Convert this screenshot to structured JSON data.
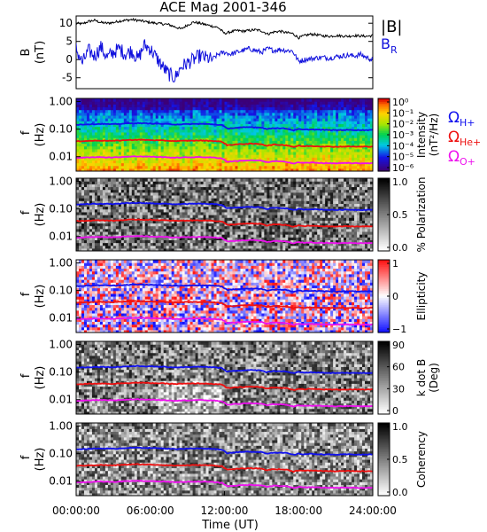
{
  "chart_data": [
    {
      "type": "line",
      "title": "ACE Mag 2001-346",
      "ylabel": "B",
      "yunit": "(nT)",
      "ylim": [
        -8,
        12
      ],
      "yticks": [
        "10",
        "5",
        "0",
        "-5"
      ],
      "series": [
        {
          "name": "|B|",
          "color": "#000000",
          "x": [
            0,
            0.5,
            1,
            1.5,
            2,
            2.5,
            3,
            3.5,
            4,
            4.5,
            5,
            5.5,
            6,
            6.5,
            7,
            7.5,
            8,
            8.5,
            9,
            9.5,
            10,
            10.5,
            11,
            11.5,
            12,
            12.5,
            13,
            13.5,
            14,
            14.5,
            15,
            15.5,
            16,
            16.5,
            17,
            17.5,
            18,
            18.5,
            19,
            19.5,
            20,
            20.5,
            21,
            21.5,
            22,
            22.5,
            23,
            23.5,
            24
          ],
          "values": [
            10.0,
            9.8,
            10.5,
            10.8,
            10.2,
            10.0,
            10.2,
            10.6,
            10.8,
            11.0,
            10.8,
            10.5,
            10.2,
            10.0,
            9.8,
            9.6,
            9.0,
            8.4,
            9.5,
            10.3,
            10.0,
            9.6,
            9.2,
            8.8,
            7.2,
            7.6,
            8.0,
            7.8,
            8.0,
            8.2,
            7.9,
            7.0,
            7.6,
            7.8,
            7.4,
            7.2,
            6.0,
            6.6,
            7.0,
            6.8,
            6.5,
            6.4,
            6.6,
            6.5,
            6.4,
            6.6,
            6.5,
            6.4,
            6.6
          ]
        },
        {
          "name": "B_R",
          "color": "#1010dd",
          "x": [
            0,
            0.5,
            1,
            1.5,
            2,
            2.5,
            3,
            3.5,
            4,
            4.5,
            5,
            5.5,
            6,
            6.5,
            7,
            7.5,
            8,
            8.5,
            9,
            9.5,
            10,
            10.5,
            11,
            11.5,
            12,
            12.5,
            13,
            13.5,
            14,
            14.5,
            15,
            15.5,
            16,
            16.5,
            17,
            17.5,
            18,
            18.5,
            19,
            19.5,
            20,
            20.5,
            21,
            21.5,
            22,
            22.5,
            23,
            23.5,
            24
          ],
          "values": [
            3.0,
            -1.0,
            2.5,
            1.0,
            3.5,
            0.5,
            2.0,
            3.0,
            1.5,
            2.5,
            0.0,
            4.0,
            3.0,
            0.5,
            -2.0,
            -4.0,
            -5.0,
            -2.0,
            -1.0,
            0.0,
            1.0,
            0.5,
            0.0,
            1.5,
            2.0,
            1.5,
            2.0,
            2.5,
            3.0,
            2.5,
            2.0,
            3.0,
            2.5,
            2.8,
            2.5,
            2.4,
            -0.5,
            0.0,
            0.2,
            0.5,
            0.6,
            0.4,
            0.8,
            1.0,
            1.2,
            1.0,
            1.4,
            0.6,
            -0.2
          ]
        }
      ]
    },
    {
      "type": "heatmap",
      "ylabel": "f",
      "yunit": "(Hz)",
      "yscale": "log",
      "yticks": [
        "1.00",
        "0.10",
        "0.01"
      ],
      "colorbar": {
        "label": "Intensity",
        "unit": "(nT²/Hz)",
        "ticks": [
          "10⁰",
          "10⁻¹",
          "10⁻²",
          "10⁻³",
          "10⁻⁴",
          "10⁻⁵",
          "10⁻⁶"
        ],
        "range": "10^-6 to 10^0",
        "colorscale": "rainbow"
      },
      "overlays": [
        "ΩH+",
        "ΩHe+",
        "ΩO+"
      ]
    },
    {
      "type": "heatmap",
      "ylabel": "f",
      "yunit": "(Hz)",
      "yscale": "log",
      "yticks": [
        "1.00",
        "0.10",
        "0.01"
      ],
      "colorbar": {
        "label": "% Polarization",
        "unit": "",
        "ticks": [
          "1.0",
          "0.5",
          "0.0"
        ],
        "range": [
          0,
          1
        ],
        "colorscale": "grayscale"
      },
      "overlays": [
        "ΩH+",
        "ΩHe+",
        "ΩO+"
      ]
    },
    {
      "type": "heatmap",
      "ylabel": "f",
      "yunit": "(Hz)",
      "yscale": "log",
      "yticks": [
        "1.00",
        "0.10",
        "0.01"
      ],
      "colorbar": {
        "label": "Ellipticity",
        "unit": "",
        "ticks": [
          "1",
          "0",
          "−1"
        ],
        "range": [
          -1,
          1
        ],
        "colorscale": "blue-white-red"
      },
      "overlays": [
        "ΩH+",
        "ΩHe+",
        "ΩO+"
      ]
    },
    {
      "type": "heatmap",
      "ylabel": "f",
      "yunit": "(Hz)",
      "yscale": "log",
      "yticks": [
        "1.00",
        "0.10",
        "0.01"
      ],
      "colorbar": {
        "label": "k dot B",
        "unit": "(Deg)",
        "ticks": [
          "90",
          "60",
          "30",
          "0"
        ],
        "range": [
          0,
          90
        ],
        "colorscale": "grayscale"
      },
      "overlays": [
        "ΩH+",
        "ΩHe+",
        "ΩO+"
      ]
    },
    {
      "type": "heatmap",
      "ylabel": "f",
      "yunit": "(Hz)",
      "yscale": "log",
      "yticks": [
        "1.00",
        "0.10",
        "0.01"
      ],
      "colorbar": {
        "label": "Coherency",
        "unit": "",
        "ticks": [
          "1.0",
          "0.5",
          "0.0"
        ],
        "range": [
          0,
          1
        ],
        "colorscale": "grayscale"
      },
      "overlays": [
        "ΩH+",
        "ΩHe+",
        "ΩO+"
      ]
    }
  ],
  "legend_top": {
    "bmag": "|B|",
    "br_main": "B",
    "br_sub": "R"
  },
  "legend_omega": [
    {
      "symbol": "Ω",
      "sub": "H+",
      "color": "#1010ee"
    },
    {
      "symbol": "Ω",
      "sub": "He+",
      "color": "#ee1010"
    },
    {
      "symbol": "Ω",
      "sub": "O+",
      "color": "#ee10ee"
    }
  ],
  "gyro_lines": {
    "x": [
      0,
      1,
      2,
      3,
      4,
      5,
      6,
      7,
      8,
      9,
      10,
      11,
      11.8,
      12.2,
      13,
      14,
      15,
      15.4,
      16,
      17,
      17.6,
      18,
      18.4,
      19,
      20,
      21,
      22,
      23,
      24
    ],
    "H_plus_hz": [
      0.145,
      0.15,
      0.155,
      0.15,
      0.16,
      0.165,
      0.16,
      0.155,
      0.148,
      0.152,
      0.155,
      0.15,
      0.14,
      0.105,
      0.112,
      0.118,
      0.115,
      0.1,
      0.11,
      0.105,
      0.09,
      0.1,
      0.095,
      0.098,
      0.094,
      0.092,
      0.094,
      0.092,
      0.094
    ]
  },
  "xaxis": {
    "ticks": [
      "00:00:00",
      "06:00:00",
      "12:00:00",
      "18:00:00",
      "24:00:00"
    ],
    "tick_hours": [
      0,
      6,
      12,
      18,
      24
    ],
    "label": "Time (UT)",
    "range_hours": [
      0,
      24
    ]
  }
}
